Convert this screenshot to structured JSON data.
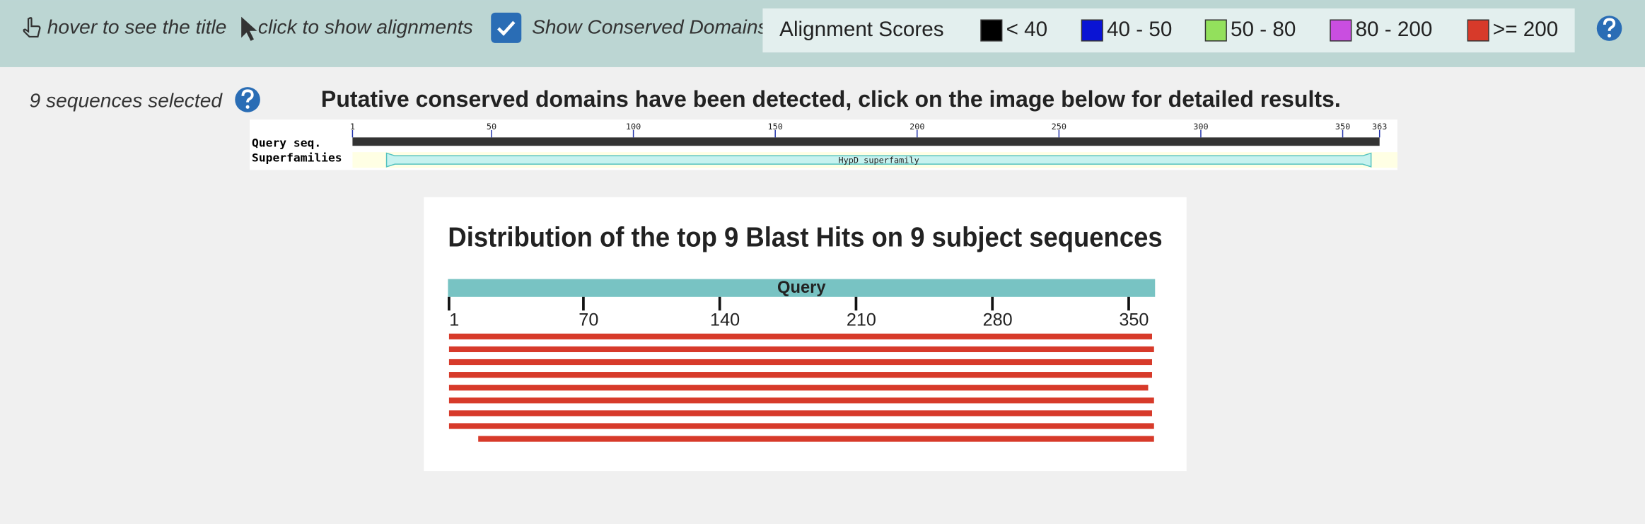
{
  "toolbar": {
    "hover_hint": "hover to see the title",
    "click_hint": "click to show alignments",
    "conserved_toggle": {
      "label": "Show Conserved Domains",
      "checked": true
    }
  },
  "legend": {
    "title": "Alignment Scores",
    "items": [
      {
        "label": "< 40",
        "color": "#000000"
      },
      {
        "label": "40 - 50",
        "color": "#0a14d4"
      },
      {
        "label": "50 - 80",
        "color": "#93e05c"
      },
      {
        "label": "80 - 200",
        "color": "#c94ee0"
      },
      {
        "label": ">= 200",
        "color": "#d73a2a"
      }
    ]
  },
  "selection": {
    "label": "9 sequences selected"
  },
  "conserved_domains": {
    "message": "Putative conserved domains have been detected, click on the image below for detailed results.",
    "row_labels": [
      "Query seq.",
      "Superfamilies"
    ],
    "xlim": [
      1,
      363
    ],
    "xticks": [
      1,
      50,
      100,
      150,
      200,
      250,
      300,
      350,
      363
    ],
    "domains": [
      {
        "name": "HypD superfamily",
        "start": 13,
        "end": 360
      }
    ]
  },
  "distribution": {
    "title": "Distribution of the top 9 Blast Hits on 9 subject sequences",
    "axis_label": "Query",
    "xlim": [
      1,
      363
    ],
    "xticks": [
      1,
      70,
      140,
      210,
      280,
      350
    ],
    "color": "#d73a2a",
    "hits": [
      {
        "start": 1,
        "end": 362
      },
      {
        "start": 1,
        "end": 363
      },
      {
        "start": 1,
        "end": 362
      },
      {
        "start": 1,
        "end": 362
      },
      {
        "start": 1,
        "end": 360
      },
      {
        "start": 1,
        "end": 363
      },
      {
        "start": 1,
        "end": 362
      },
      {
        "start": 1,
        "end": 363
      },
      {
        "start": 16,
        "end": 363
      }
    ]
  }
}
